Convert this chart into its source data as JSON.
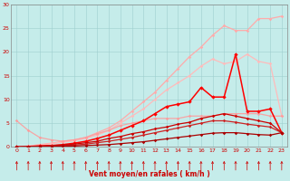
{
  "xlabel": "Vent moyen/en rafales ( km/h )",
  "xlim": [
    -0.5,
    23.5
  ],
  "ylim": [
    0,
    30
  ],
  "xticks": [
    0,
    1,
    2,
    3,
    4,
    5,
    6,
    7,
    8,
    9,
    10,
    11,
    12,
    13,
    14,
    15,
    16,
    17,
    18,
    19,
    20,
    21,
    22,
    23
  ],
  "yticks": [
    0,
    5,
    10,
    15,
    20,
    25,
    30
  ],
  "bg_color": "#c5ecea",
  "grid_color": "#9ecece",
  "series": [
    {
      "x": [
        0,
        1,
        2,
        3,
        4,
        5,
        6,
        7,
        8,
        9,
        10,
        11,
        12,
        13,
        14,
        15,
        16,
        17,
        18,
        19,
        20,
        21,
        22,
        23
      ],
      "y": [
        0.0,
        0.2,
        0.5,
        0.8,
        1.2,
        1.5,
        2.0,
        3.0,
        4.0,
        5.5,
        7.5,
        9.5,
        11.5,
        14.0,
        16.5,
        19.0,
        21.0,
        23.5,
        25.5,
        24.5,
        24.5,
        27.0,
        27.0,
        27.5
      ],
      "color": "#ffaaaa",
      "alpha": 1.0,
      "lw": 0.9,
      "marker": "D",
      "ms": 1.8
    },
    {
      "x": [
        0,
        1,
        2,
        3,
        4,
        5,
        6,
        7,
        8,
        9,
        10,
        11,
        12,
        13,
        14,
        15,
        16,
        17,
        18,
        19,
        20,
        21,
        22,
        23
      ],
      "y": [
        0.0,
        0.2,
        0.4,
        0.7,
        1.0,
        1.3,
        1.8,
        2.5,
        3.5,
        5.0,
        6.5,
        8.0,
        10.0,
        12.0,
        13.5,
        15.0,
        17.0,
        18.5,
        17.5,
        18.0,
        19.5,
        18.0,
        17.5,
        6.5
      ],
      "color": "#ffbbbb",
      "alpha": 1.0,
      "lw": 0.9,
      "marker": "D",
      "ms": 1.8
    },
    {
      "x": [
        0,
        1,
        2,
        3,
        4,
        5,
        6,
        7,
        8,
        9,
        10,
        11,
        12,
        13,
        14,
        15,
        16,
        17,
        18,
        19,
        20,
        21,
        22,
        23
      ],
      "y": [
        5.5,
        3.5,
        2.0,
        1.5,
        1.2,
        1.5,
        2.0,
        2.8,
        3.5,
        4.5,
        5.0,
        5.5,
        6.0,
        6.0,
        6.0,
        6.5,
        6.5,
        6.5,
        7.0,
        7.0,
        7.0,
        7.0,
        6.5,
        6.5
      ],
      "color": "#ff9999",
      "alpha": 0.85,
      "lw": 0.9,
      "marker": "D",
      "ms": 1.8
    },
    {
      "x": [
        0,
        1,
        2,
        3,
        4,
        5,
        6,
        7,
        8,
        9,
        10,
        11,
        12,
        13,
        14,
        15,
        16,
        17,
        18,
        19,
        20,
        21,
        22,
        23
      ],
      "y": [
        0.0,
        0.1,
        0.2,
        0.3,
        0.5,
        0.8,
        1.2,
        1.8,
        2.5,
        3.5,
        4.5,
        5.5,
        7.0,
        8.5,
        9.0,
        9.5,
        12.5,
        10.5,
        10.5,
        19.5,
        7.5,
        7.5,
        8.0,
        3.0
      ],
      "color": "#ff0000",
      "alpha": 1.0,
      "lw": 1.1,
      "marker": "D",
      "ms": 2.2
    },
    {
      "x": [
        0,
        1,
        2,
        3,
        4,
        5,
        6,
        7,
        8,
        9,
        10,
        11,
        12,
        13,
        14,
        15,
        16,
        17,
        18,
        19,
        20,
        21,
        22,
        23
      ],
      "y": [
        0.0,
        0.1,
        0.2,
        0.3,
        0.4,
        0.6,
        0.9,
        1.2,
        1.8,
        2.2,
        2.8,
        3.2,
        3.8,
        4.2,
        4.8,
        5.2,
        6.0,
        6.5,
        7.0,
        6.5,
        6.0,
        5.5,
        5.0,
        3.0
      ],
      "color": "#cc0000",
      "alpha": 1.0,
      "lw": 0.9,
      "marker": "D",
      "ms": 1.8
    },
    {
      "x": [
        0,
        1,
        2,
        3,
        4,
        5,
        6,
        7,
        8,
        9,
        10,
        11,
        12,
        13,
        14,
        15,
        16,
        17,
        18,
        19,
        20,
        21,
        22,
        23
      ],
      "y": [
        0.0,
        0.1,
        0.1,
        0.2,
        0.3,
        0.4,
        0.6,
        0.9,
        1.2,
        1.6,
        2.0,
        2.5,
        3.0,
        3.5,
        4.0,
        4.5,
        5.0,
        5.5,
        5.5,
        5.2,
        4.8,
        4.5,
        4.2,
        3.0
      ],
      "color": "#cc2222",
      "alpha": 1.0,
      "lw": 0.9,
      "marker": "D",
      "ms": 1.8
    },
    {
      "x": [
        0,
        1,
        2,
        3,
        4,
        5,
        6,
        7,
        8,
        9,
        10,
        11,
        12,
        13,
        14,
        15,
        16,
        17,
        18,
        19,
        20,
        21,
        22,
        23
      ],
      "y": [
        0.0,
        0.05,
        0.1,
        0.1,
        0.2,
        0.2,
        0.3,
        0.4,
        0.5,
        0.7,
        0.9,
        1.1,
        1.4,
        1.7,
        2.0,
        2.3,
        2.6,
        2.9,
        3.0,
        3.0,
        2.8,
        2.6,
        2.5,
        3.0
      ],
      "color": "#aa0000",
      "alpha": 1.0,
      "lw": 0.9,
      "marker": "D",
      "ms": 1.8
    }
  ],
  "arrow_color": "#cc0000",
  "xlabel_color": "#cc0000",
  "tick_color": "#cc0000"
}
